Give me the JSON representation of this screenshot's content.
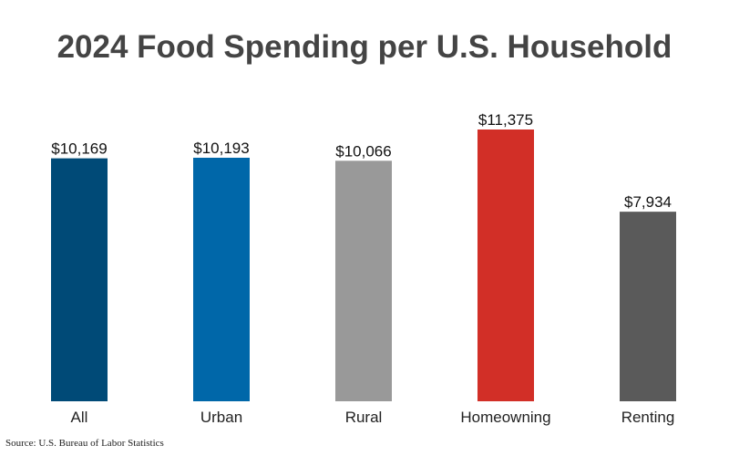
{
  "chart_data": {
    "type": "bar",
    "title": "2024 Food Spending per U.S. Household",
    "categories": [
      "All",
      "Urban",
      "Rural",
      "Homeowning",
      "Renting"
    ],
    "values": [
      10169,
      10193,
      10066,
      11375,
      7934
    ],
    "value_labels": [
      "$10,169",
      "$10,193",
      "$10,066",
      "$11,375",
      "$7,934"
    ],
    "colors": [
      "#004a77",
      "#0067a9",
      "#999999",
      "#d22f27",
      "#5a5a5a"
    ],
    "xlabel": "",
    "ylabel": "",
    "ylim": [
      0,
      12215
    ],
    "grid": false,
    "legend": "none"
  },
  "source": "Source: U.S. Bureau of Labor Statistics"
}
